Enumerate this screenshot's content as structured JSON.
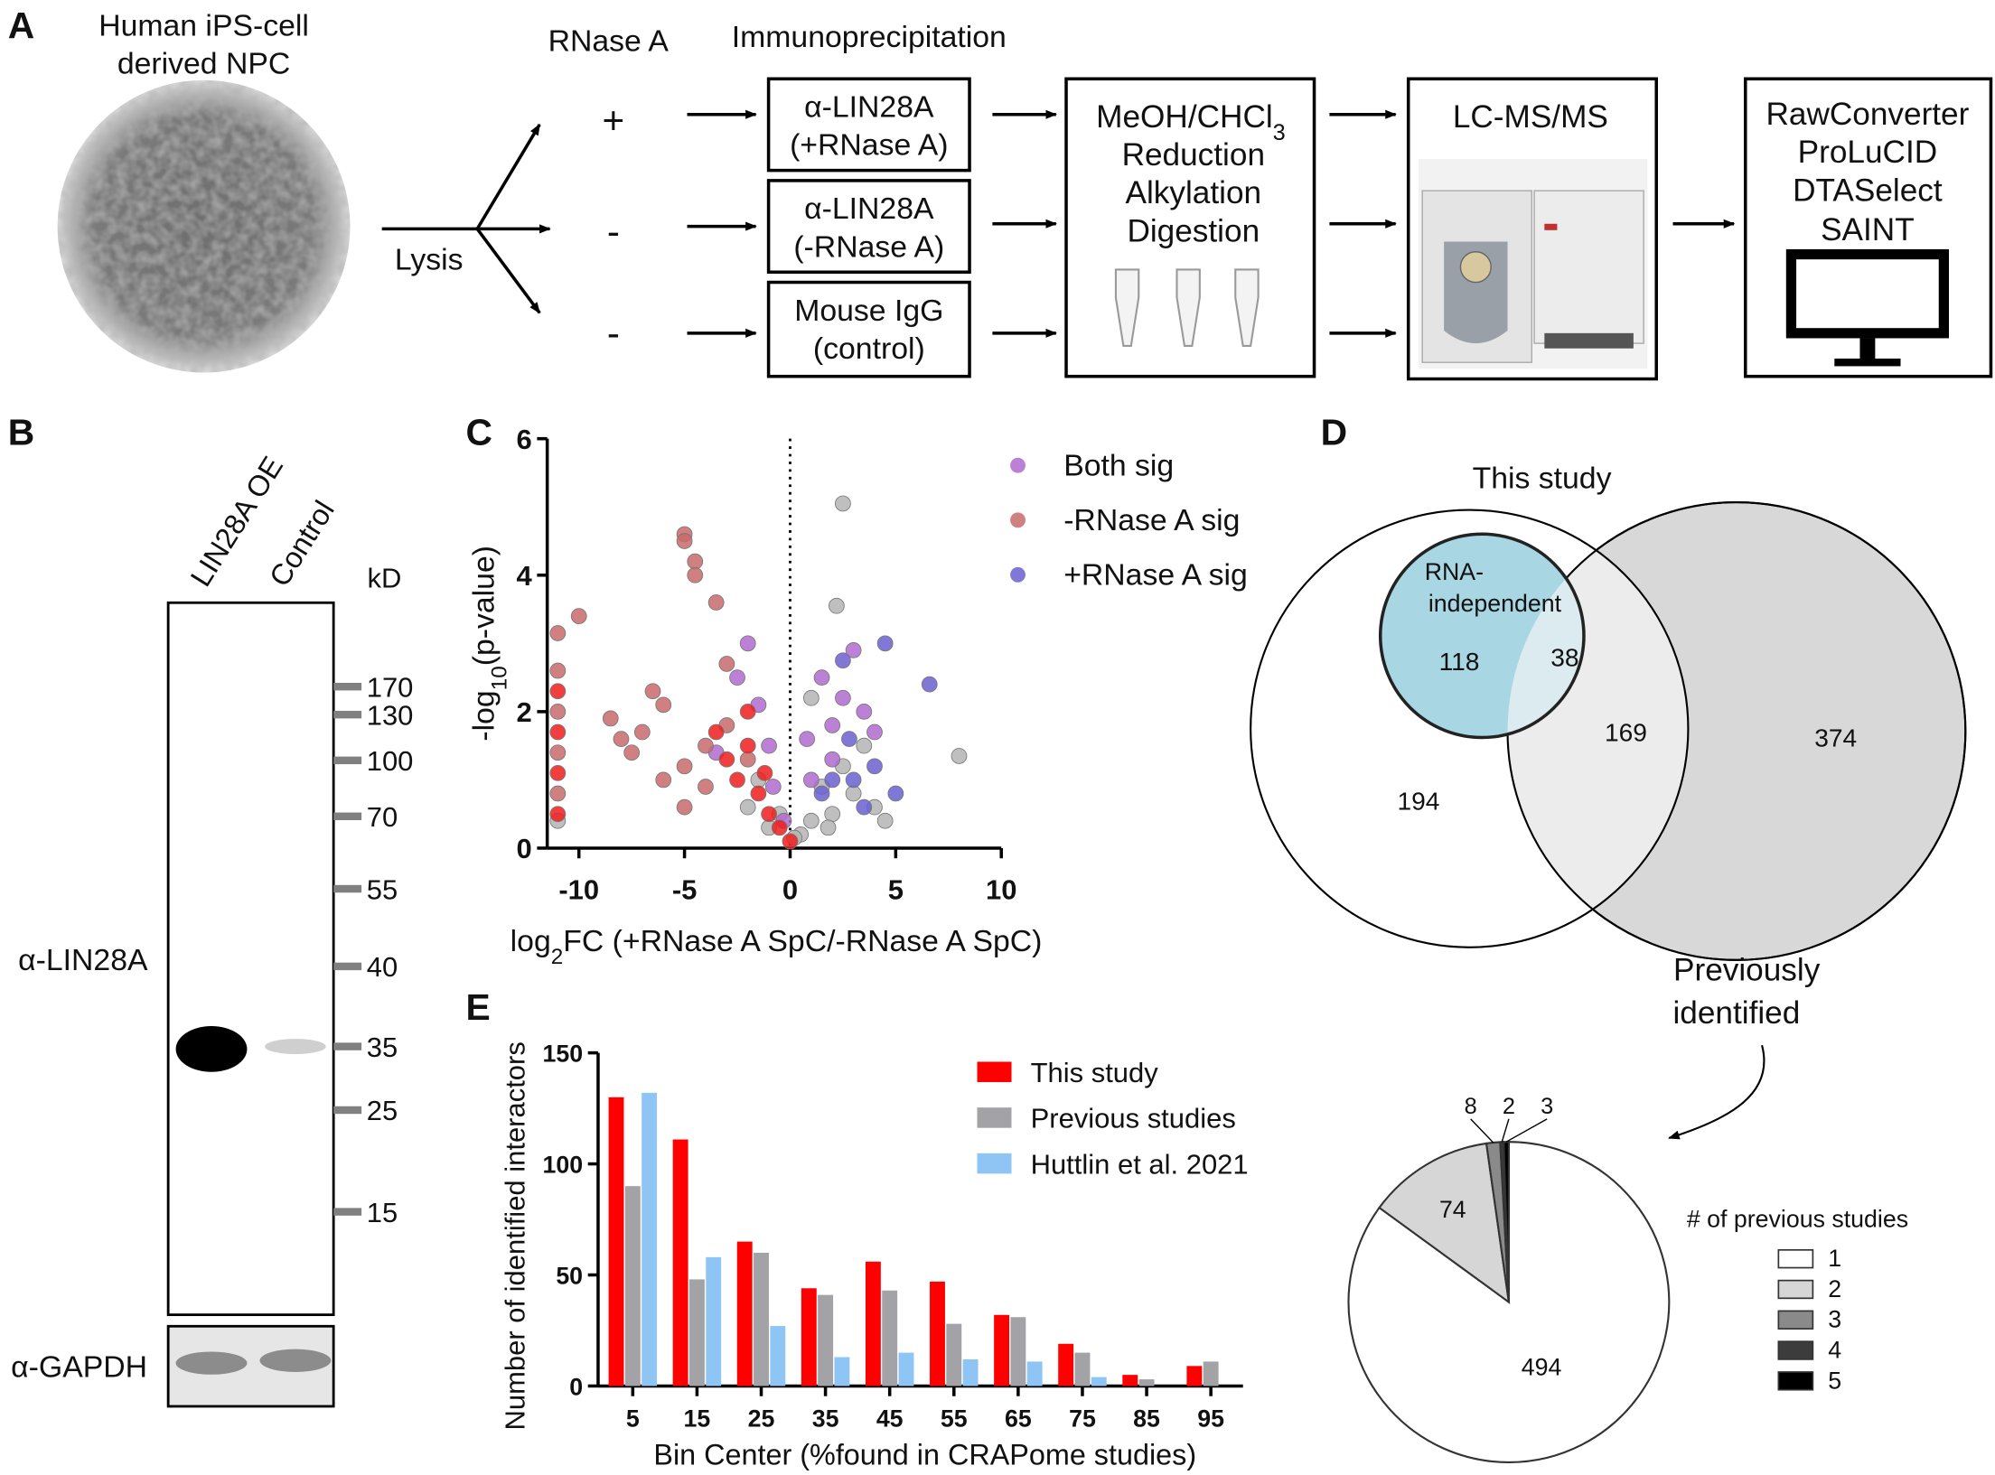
{
  "panel_labels": [
    "A",
    "B",
    "C",
    "D",
    "E"
  ],
  "workflow": {
    "cells": [
      "Human iPS-cell",
      "derived NPC"
    ],
    "lysis": "Lysis",
    "rnase_header": "RNase A",
    "ip_header": "Immunoprecipitation",
    "signs": [
      "+",
      "-",
      "-"
    ],
    "ip_boxes": [
      [
        "α-LIN28A",
        "(+RNase A)"
      ],
      [
        "α-LIN28A",
        "(-RNase A)"
      ],
      [
        "Mouse IgG",
        "(control)"
      ]
    ],
    "prep": {
      "line1": {
        "text": "MeOH/CHCl",
        "sub": "3"
      },
      "lines": [
        "Reduction",
        "Alkylation",
        "Digestion"
      ]
    },
    "ms": "LC-MS/MS",
    "software": [
      "RawConverter",
      "ProLuCID",
      "DTASelect",
      "SAINT"
    ]
  },
  "blot": {
    "lanes": [
      "LIN28A OE",
      "Control"
    ],
    "unit": "kD",
    "markers": [
      170,
      130,
      100,
      70,
      55,
      40,
      35,
      25,
      15
    ],
    "antibodies": [
      "α-LIN28A",
      "α-GAPDH"
    ]
  },
  "venn": {
    "title": "This study",
    "inner": [
      "RNA-",
      "independent"
    ],
    "counts": {
      "rna_only": 118,
      "rna_prev": 38,
      "study_prev": 169,
      "prev_only": 374,
      "study_only": 194
    },
    "other": [
      "Previously",
      "identified"
    ]
  },
  "chart_data": [
    {
      "type": "scatter",
      "xlabel": {
        "pre": "log",
        "sub": "2",
        "post": "FC (+RNase A SpC/-RNase A SpC)"
      },
      "ylabel": {
        "pre": "-log",
        "sub": "10",
        "post": "(p-value)"
      },
      "xlim": [
        -11.5,
        10
      ],
      "ylim": [
        0,
        6
      ],
      "xticks": [
        -10,
        -5,
        0,
        5,
        10
      ],
      "yticks": [
        0,
        2,
        4,
        6
      ],
      "legend": "upper right",
      "series": [
        {
          "color": "#b4b4b4",
          "x": [
            -11,
            -2,
            -1,
            0.5,
            1,
            2,
            3,
            2.5,
            4,
            2.5,
            2.2,
            8,
            1.5,
            -0.5,
            3.5,
            1,
            -1.5,
            0.2,
            1.8,
            4.5
          ],
          "values": [
            0.4,
            0.6,
            0.3,
            0.2,
            0.4,
            0.5,
            0.8,
            1.2,
            0.6,
            5.05,
            3.55,
            1.35,
            0.9,
            0.5,
            1.5,
            2.2,
            1.0,
            0.15,
            0.3,
            0.4
          ]
        },
        {
          "name": "Both sig",
          "color": "#b26ad0",
          "x": [
            -2.5,
            -1.5,
            2,
            1.5,
            3,
            4,
            2,
            -1,
            -0.3,
            2.5,
            3.5,
            1,
            -2,
            -3.5,
            -0.8,
            0.8
          ],
          "values": [
            2.5,
            2.1,
            1.8,
            2.5,
            2.9,
            1.7,
            1.3,
            1.5,
            0.4,
            2.2,
            2.0,
            1.0,
            3.0,
            1.4,
            0.9,
            1.6
          ]
        },
        {
          "name": "-RNase A sig",
          "color": "#c86a6a",
          "x": [
            -11,
            -11,
            -11,
            -11,
            -11,
            -10,
            -5,
            -5,
            -4.5,
            -4.5,
            -3.5,
            -3,
            -6,
            -7,
            -8,
            -7.5,
            -5,
            -4,
            -3,
            -2,
            -5,
            -4,
            -6,
            -8.5,
            -6.5
          ],
          "values": [
            0.8,
            1.4,
            2.0,
            2.6,
            3.15,
            3.4,
            4.6,
            4.5,
            4.2,
            4.0,
            3.6,
            2.7,
            2.1,
            1.7,
            1.6,
            1.4,
            1.2,
            1.5,
            1.8,
            1.3,
            0.6,
            0.9,
            1.0,
            1.9,
            2.3
          ]
        },
        {
          "color": "#ee1c1c",
          "x": [
            -11,
            -11,
            -11,
            -11,
            -2.5,
            -2,
            -1.5,
            -1,
            -3,
            -0.5,
            0,
            -2,
            -3.5,
            -1.2
          ],
          "values": [
            0.5,
            1.1,
            1.7,
            2.3,
            1.0,
            1.5,
            0.8,
            0.5,
            1.3,
            0.3,
            0.1,
            2.0,
            1.7,
            1.1
          ]
        },
        {
          "name": "+RNase A sig",
          "color": "#6b5fd0",
          "x": [
            2.5,
            3,
            4.5,
            6.6,
            2,
            1.5,
            4,
            3.5,
            5,
            2.8
          ],
          "values": [
            2.75,
            1.0,
            3.0,
            2.4,
            1.0,
            0.8,
            1.2,
            0.6,
            0.8,
            1.6
          ]
        }
      ]
    },
    {
      "type": "bar",
      "ylabel": "Number of identified interactors",
      "xlabel": "Bin Center (%found in CRAPome studies)",
      "categories": [
        5,
        15,
        25,
        35,
        45,
        55,
        65,
        75,
        85,
        95
      ],
      "ylim": [
        0,
        150
      ],
      "yticks": [
        0,
        50,
        100,
        150
      ],
      "legend": "upper right",
      "series": [
        {
          "name": "This study",
          "color": "#ff0000",
          "values": [
            130,
            111,
            65,
            44,
            56,
            47,
            32,
            19,
            5,
            9
          ]
        },
        {
          "name": "Previous studies",
          "color": "#a3a3a7",
          "values": [
            90,
            48,
            60,
            41,
            43,
            28,
            31,
            15,
            3,
            11
          ]
        },
        {
          "name": "Huttlin et al. 2021",
          "color": "#8ec5f5",
          "values": [
            132,
            58,
            27,
            13,
            15,
            12,
            11,
            4,
            0,
            0
          ]
        }
      ]
    },
    {
      "type": "pie",
      "legend_title": "# of previous studies",
      "labels": [
        "1",
        "2",
        "3",
        "4",
        "5"
      ],
      "values": [
        494,
        74,
        8,
        2,
        3
      ],
      "colors": [
        "#ffffff",
        "#d6d6d6",
        "#8a8a8a",
        "#3c3c3c",
        "#000000"
      ]
    }
  ]
}
